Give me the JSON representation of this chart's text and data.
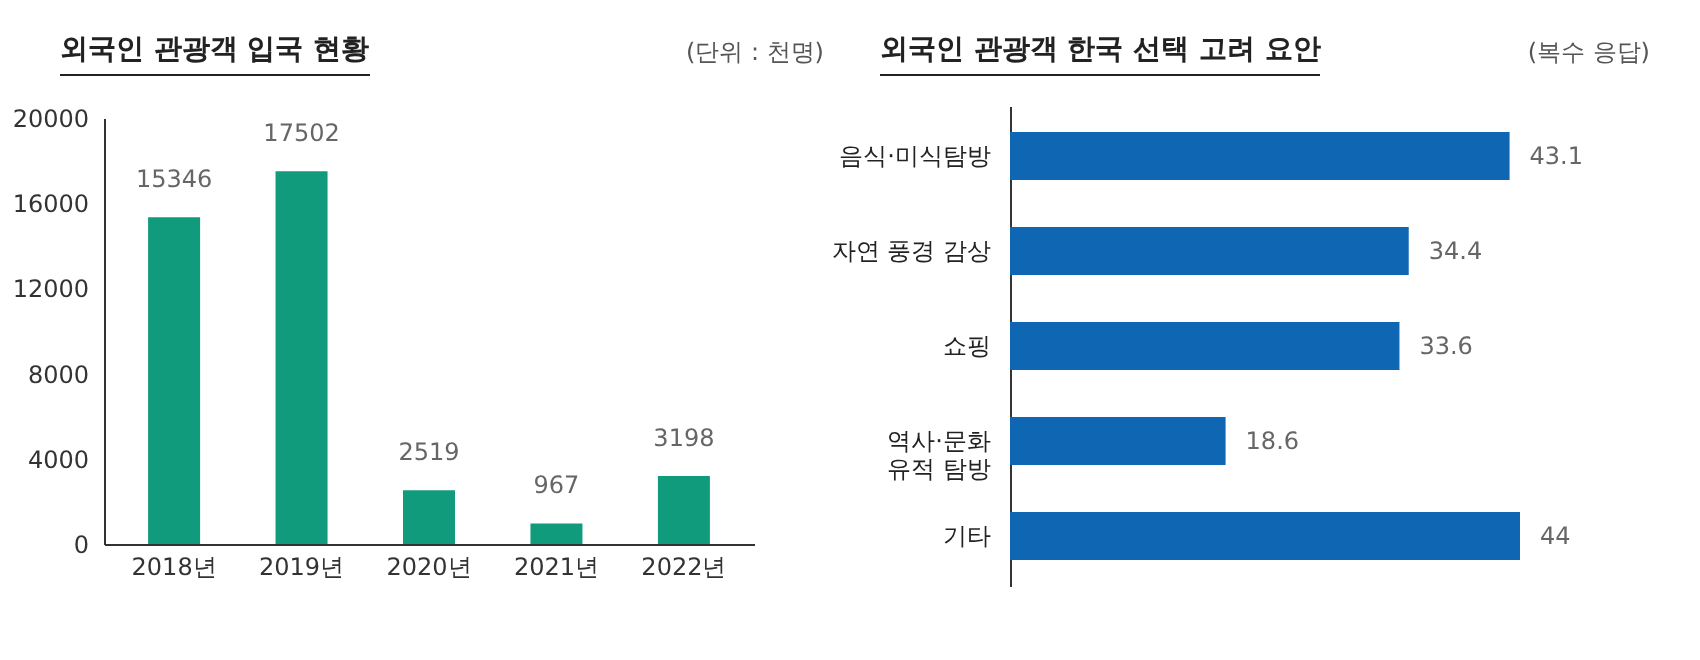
{
  "chart_data": [
    {
      "type": "bar",
      "title": "외국인 관광객 입국 현황",
      "annotations": [
        "(단위 : 천명)"
      ],
      "categories": [
        "2018년",
        "2019년",
        "2020년",
        "2021년",
        "2022년"
      ],
      "values": [
        15346,
        17502,
        2519,
        967,
        3198
      ],
      "color": "#109b7c",
      "ylim": [
        0,
        20000
      ],
      "yticks": [
        0,
        4000,
        8000,
        12000,
        16000,
        20000
      ],
      "grid": false,
      "data_labels": true
    },
    {
      "type": "bar",
      "orientation": "horizontal",
      "title": "외국인 관광객 한국 선택 고려 요안",
      "annotations": [
        "(복수 응답)"
      ],
      "categories": [
        "음식·미식탐방",
        "자연 풍경 감상",
        "쇼핑",
        "역사·문화\n유적 탐방",
        "기타"
      ],
      "values": [
        43.1,
        34.4,
        33.6,
        18.6,
        44
      ],
      "color": "#0f66b3",
      "tick_labels": "y",
      "data_labels": true
    }
  ]
}
